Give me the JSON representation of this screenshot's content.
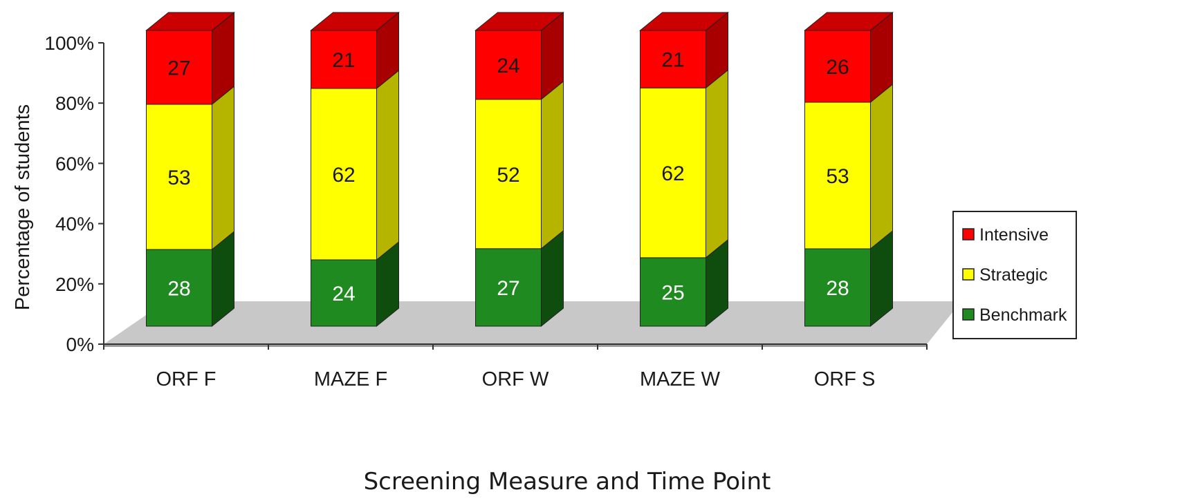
{
  "chart_data": {
    "type": "bar",
    "stacked": true,
    "three_d": true,
    "categories": [
      "ORF F",
      "MAZE F",
      "ORF W",
      "MAZE W",
      "ORF S"
    ],
    "series": [
      {
        "name": "Benchmark",
        "values": [
          28,
          24,
          27,
          25,
          28
        ],
        "color": "#1f8a1f",
        "side_color": "#0f4d0f",
        "top_color": "#146614",
        "label_color": "#ffffff"
      },
      {
        "name": "Strategic",
        "values": [
          53,
          62,
          52,
          62,
          53
        ],
        "color": "#ffff00",
        "side_color": "#b5b500",
        "top_color": "#d6d600",
        "label_color": "#1a1a1a"
      },
      {
        "name": "Intensive",
        "values": [
          27,
          21,
          24,
          21,
          26
        ],
        "color": "#ff0000",
        "side_color": "#a80000",
        "top_color": "#cc0000",
        "label_color": "#1a1a1a"
      }
    ],
    "xlabel": "Screening Measure and Time Point",
    "ylabel": "Percentage of students",
    "ylim": [
      0,
      100
    ],
    "ytick_labels": [
      "0%",
      "20%",
      "40%",
      "60%",
      "80%",
      "100%"
    ],
    "legend": {
      "position": "right",
      "order": [
        "Intensive",
        "Strategic",
        "Benchmark"
      ]
    },
    "grid": false,
    "floor_color": "#c8c8c8"
  }
}
